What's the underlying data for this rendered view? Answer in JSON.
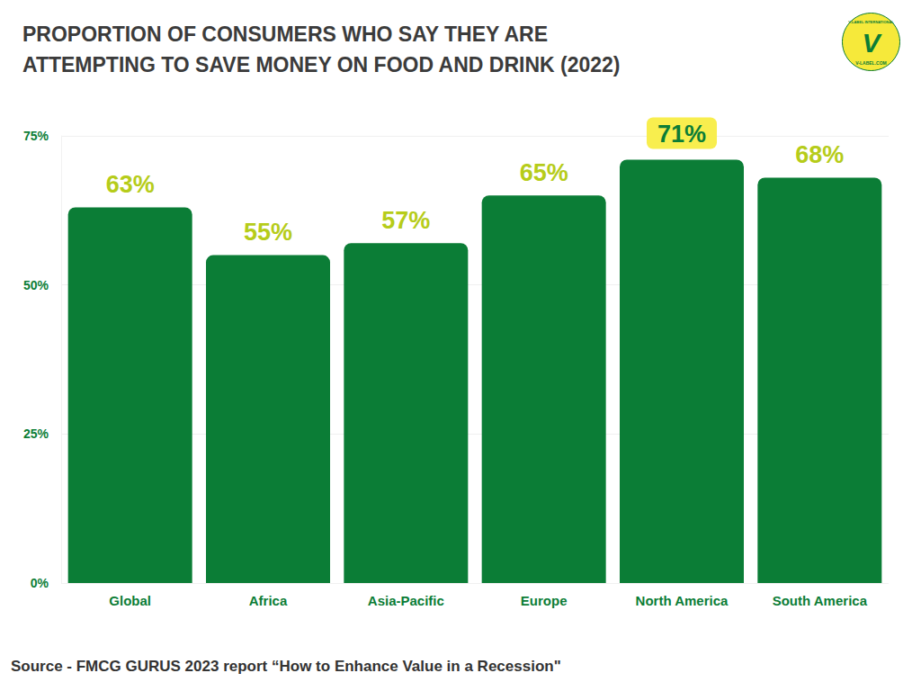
{
  "chart_data": {
    "type": "bar",
    "title": "PROPORTION OF CONSUMERS WHO SAY THEY ARE ATTEMPTING TO SAVE MONEY ON FOOD AND DRINK (2022)",
    "categories": [
      "Global",
      "Africa",
      "Asia-Pacific",
      "Europe",
      "North America",
      "South America"
    ],
    "values": [
      63,
      55,
      57,
      65,
      71,
      68
    ],
    "value_labels": [
      "63%",
      "55%",
      "57%",
      "65%",
      "71%",
      "68%"
    ],
    "color": "#0b7d36",
    "ylim": [
      0,
      75
    ],
    "yticks": [
      {
        "value": 0,
        "label": "0%"
      },
      {
        "value": 25,
        "label": "25%"
      },
      {
        "value": 50,
        "label": "50%"
      },
      {
        "value": 75,
        "label": "75%"
      }
    ],
    "grid": true,
    "data_labels": true,
    "source": "Source - FMCG GURUS 2023 report “How to Enhance Value in a Recession\"",
    "logo": {
      "mark": "V",
      "top_text": "V-LABEL INTERNATIONAL",
      "bottom_text": "V-LABEL.COM"
    }
  }
}
